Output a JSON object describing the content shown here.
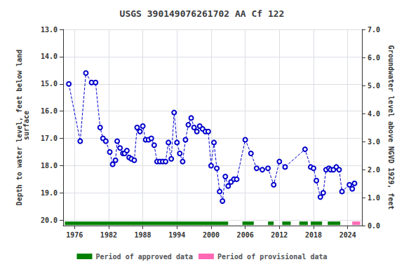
{
  "chart_data": {
    "type": "line",
    "title": "USGS 390149076261702 AA Cf 122",
    "ylabel": "Depth to water level, feet below land\n surface",
    "y2label": "Groundwater level above NGVD 1929, feet",
    "x": [
      1975.0,
      1977.0,
      1978.0,
      1979.0,
      1979.7,
      1980.5,
      1981.0,
      1981.5,
      1982.2,
      1982.7,
      1983.2,
      1983.5,
      1984.0,
      1984.5,
      1984.8,
      1985.2,
      1985.6,
      1986.0,
      1986.5,
      1987.0,
      1987.5,
      1988.0,
      1988.5,
      1989.0,
      1989.5,
      1990.0,
      1990.5,
      1991.0,
      1991.5,
      1992.0,
      1992.5,
      1993.0,
      1993.5,
      1994.0,
      1994.5,
      1995.0,
      1995.5,
      1996.0,
      1996.5,
      1997.0,
      1997.5,
      1998.0,
      1998.5,
      1999.0,
      1999.5,
      2000.0,
      2000.5,
      2001.0,
      2001.5,
      2002.0,
      2002.5,
      2003.0,
      2003.5,
      2004.0,
      2004.5,
      2006.0,
      2007.0,
      2008.0,
      2009.0,
      2010.0,
      2011.0,
      2012.0,
      2013.0,
      2016.5,
      2017.5,
      2018.0,
      2018.5,
      2019.2,
      2019.7,
      2020.2,
      2020.7,
      2021.0,
      2021.5,
      2022.0,
      2022.5,
      2023.0,
      2024.3,
      2024.8,
      2025.2
    ],
    "values": [
      15.0,
      17.1,
      14.6,
      14.95,
      14.95,
      16.6,
      17.0,
      17.1,
      17.5,
      17.95,
      17.8,
      17.1,
      17.35,
      17.55,
      17.55,
      17.45,
      17.7,
      17.75,
      17.8,
      16.6,
      16.75,
      16.55,
      17.05,
      17.05,
      17.0,
      17.25,
      17.85,
      17.85,
      17.85,
      17.85,
      17.15,
      17.75,
      16.05,
      17.15,
      17.55,
      17.85,
      17.05,
      16.5,
      16.25,
      16.6,
      16.75,
      16.55,
      16.65,
      16.75,
      16.75,
      18.0,
      17.15,
      18.1,
      18.95,
      19.3,
      18.4,
      18.75,
      18.6,
      18.5,
      18.5,
      17.05,
      17.55,
      18.1,
      18.15,
      18.1,
      18.7,
      17.85,
      18.05,
      17.4,
      18.05,
      18.1,
      18.55,
      19.15,
      19.0,
      18.15,
      18.1,
      18.15,
      18.15,
      18.05,
      18.15,
      18.95,
      18.7,
      18.85,
      18.65
    ],
    "color": "#0000cc",
    "marker": "circle",
    "line_style": "dashed",
    "xlim": [
      1974.0,
      2026.5
    ],
    "xticks": [
      1976,
      1982,
      1988,
      1994,
      2000,
      2006,
      2012,
      2018,
      2024
    ],
    "ylim": [
      20.2,
      13.0
    ],
    "yticks": [
      {
        "value": 13.0,
        "label": "13.0"
      },
      {
        "value": 14.0,
        "label": "14.0"
      },
      {
        "value": 15.0,
        "label": "15.0"
      },
      {
        "value": 16.0,
        "label": "16.0"
      },
      {
        "value": 17.0,
        "label": "17.0"
      },
      {
        "value": 18.0,
        "label": "18.0"
      },
      {
        "value": 19.0,
        "label": "19.0"
      },
      {
        "value": 20.0,
        "label": "20.0"
      }
    ],
    "y2lim": [
      0.0,
      7.0
    ],
    "y2ticks": [
      {
        "value": 0.0,
        "label": "0.0"
      },
      {
        "value": 1.0,
        "label": "1.0"
      },
      {
        "value": 2.0,
        "label": "2.0"
      },
      {
        "value": 3.0,
        "label": "3.0"
      },
      {
        "value": 4.0,
        "label": "4.0"
      },
      {
        "value": 5.0,
        "label": "5.0"
      },
      {
        "value": 6.0,
        "label": "6.0"
      },
      {
        "value": 7.0,
        "label": "7.0"
      }
    ],
    "grid": true,
    "legend": "bottom",
    "period_y": [
      20.05,
      20.18
    ],
    "periods": [
      {
        "name": "Period of approved data",
        "color": "#008000",
        "segments": [
          [
            1974.3,
            2003.0
          ],
          [
            2005.5,
            2007.5
          ],
          [
            2010.0,
            2011.0
          ],
          [
            2012.5,
            2014.0
          ],
          [
            2015.5,
            2017.0
          ],
          [
            2017.5,
            2019.5
          ],
          [
            2020.5,
            2022.7
          ]
        ]
      },
      {
        "name": "Period of provisional data",
        "color": "#ff69b4",
        "segments": [
          [
            2024.8,
            2026.2
          ]
        ]
      }
    ]
  }
}
